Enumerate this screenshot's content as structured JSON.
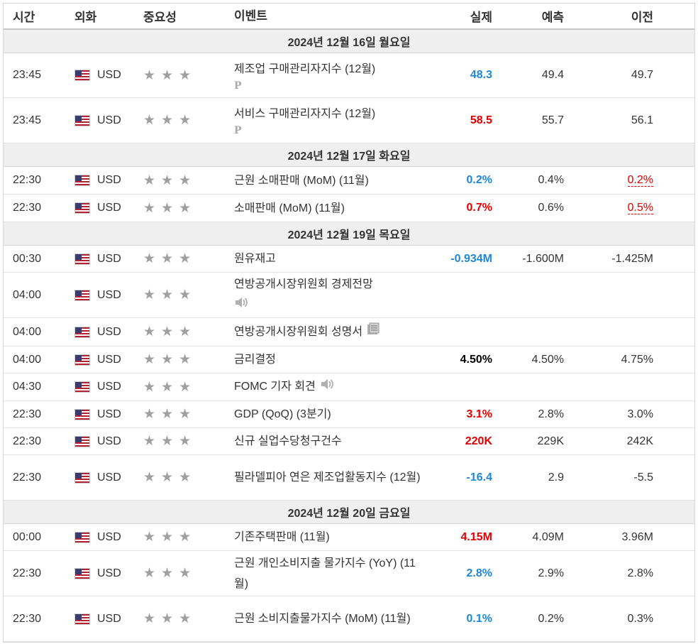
{
  "header": {
    "time": "시간",
    "currency": "외화",
    "importance": "중요성",
    "event": "이벤트",
    "actual": "실제",
    "forecast": "예측",
    "previous": "이전"
  },
  "dates": [
    "2024년 12월 16일 월요일",
    "2024년 12월 17일 화요일",
    "2024년 12월 19일 목요일",
    "2024년 12월 20일 금요일"
  ],
  "rows": [
    {
      "time": "23:45",
      "cur": "USD",
      "event": "제조업 구매관리자지수 (12월)",
      "actual": "48.3",
      "forecast": "49.4",
      "previous": "49.7"
    },
    {
      "time": "23:45",
      "cur": "USD",
      "event": "서비스 구매관리자지수 (12월)",
      "actual": "58.5",
      "forecast": "55.7",
      "previous": "56.1"
    },
    {
      "time": "22:30",
      "cur": "USD",
      "event": "근원 소매판매 (MoM) (11월)",
      "actual": "0.2%",
      "forecast": "0.4%",
      "previous": "0.2%"
    },
    {
      "time": "22:30",
      "cur": "USD",
      "event": "소매판매 (MoM) (11월)",
      "actual": "0.7%",
      "forecast": "0.6%",
      "previous": "0.5%"
    },
    {
      "time": "00:30",
      "cur": "USD",
      "event": "원유재고",
      "actual": "-0.934M",
      "forecast": "-1.600M",
      "previous": "-1.425M"
    },
    {
      "time": "04:00",
      "cur": "USD",
      "event": "연방공개시장위원회 경제전망",
      "actual": "",
      "forecast": "",
      "previous": ""
    },
    {
      "time": "04:00",
      "cur": "USD",
      "event": "연방공개시장위원회 성명서",
      "actual": "",
      "forecast": "",
      "previous": ""
    },
    {
      "time": "04:00",
      "cur": "USD",
      "event": "금리결정",
      "actual": "4.50%",
      "forecast": "4.50%",
      "previous": "4.75%"
    },
    {
      "time": "04:30",
      "cur": "USD",
      "event": "FOMC 기자 회견",
      "actual": "",
      "forecast": "",
      "previous": ""
    },
    {
      "time": "22:30",
      "cur": "USD",
      "event": "GDP (QoQ) (3분기)",
      "actual": "3.1%",
      "forecast": "2.8%",
      "previous": "3.0%"
    },
    {
      "time": "22:30",
      "cur": "USD",
      "event": "신규 실업수당청구건수",
      "actual": "220K",
      "forecast": "229K",
      "previous": "242K"
    },
    {
      "time": "22:30",
      "cur": "USD",
      "event": "필라델피아 연은 제조업활동지수 (12월)",
      "actual": "-16.4",
      "forecast": "2.9",
      "previous": "-5.5"
    },
    {
      "time": "00:00",
      "cur": "USD",
      "event": "기존주택판매 (11월)",
      "actual": "4.15M",
      "forecast": "4.09M",
      "previous": "3.96M"
    },
    {
      "time": "22:30",
      "cur": "USD",
      "event": "근원 개인소비지출 물가지수 (YoY) (11월)",
      "actual": "2.8%",
      "forecast": "2.9%",
      "previous": "2.8%"
    },
    {
      "time": "22:30",
      "cur": "USD",
      "event": "근원 소비지출물가지수 (MoM) (11월)",
      "actual": "0.1%",
      "forecast": "0.2%",
      "previous": "0.3%"
    }
  ],
  "prelim_mark": "P",
  "colors": {
    "better": "#1e88d2",
    "worse": "#e00000",
    "neutral": "#000000",
    "star": "#a0a0a0"
  }
}
